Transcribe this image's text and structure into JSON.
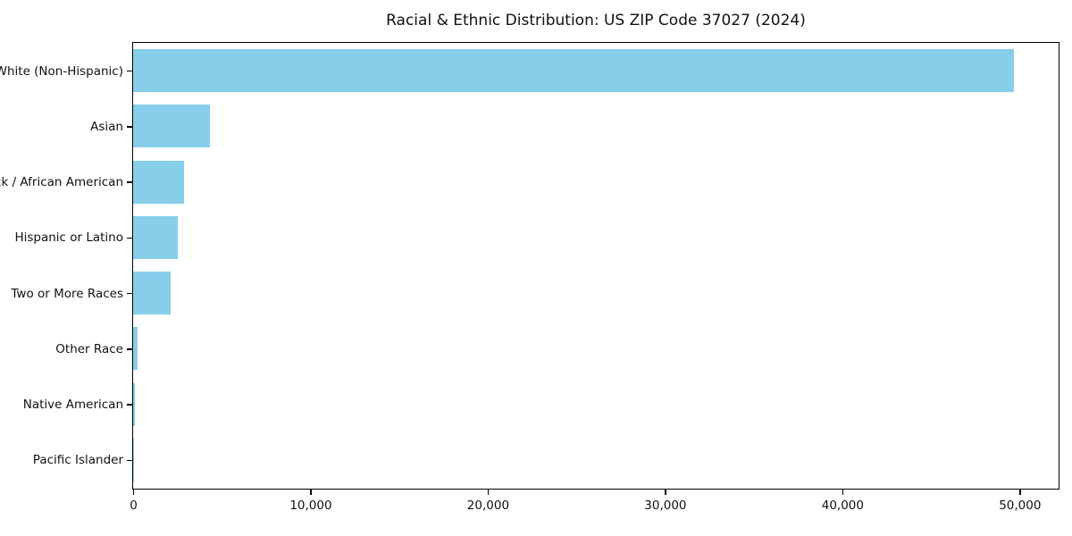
{
  "title": "Racial & Ethnic Distribution: US ZIP Code 37027 (2024)",
  "colors": {
    "bar": "#87CEEB",
    "axis": "#000000",
    "text": "#111111",
    "background": "#ffffff"
  },
  "chart_data": {
    "type": "bar",
    "orientation": "horizontal",
    "title": "Racial & Ethnic Distribution: US ZIP Code 37027 (2024)",
    "xlabel": "",
    "ylabel": "",
    "categories": [
      "White (Non-Hispanic)",
      "Asian",
      "Black / African American",
      "Hispanic or Latino",
      "Two or More Races",
      "Other Race",
      "Native American",
      "Pacific Islander"
    ],
    "values": [
      49700,
      4320,
      2860,
      2510,
      2110,
      230,
      80,
      30
    ],
    "bar_color": "#87CEEB",
    "xlim": [
      0,
      52150
    ],
    "x_ticks": [
      0,
      10000,
      20000,
      30000,
      40000,
      50000
    ],
    "x_tick_labels": [
      "0",
      "10,000",
      "20,000",
      "30,000",
      "40,000",
      "50,000"
    ],
    "grid": false,
    "legend": null
  }
}
